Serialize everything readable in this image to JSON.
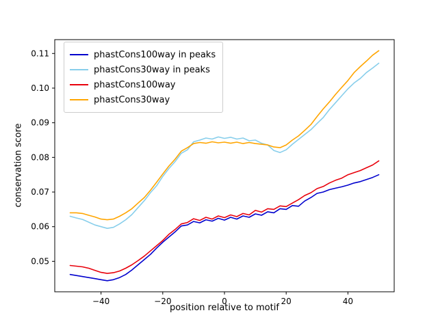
{
  "figure": {
    "background": "#ffffff"
  },
  "chart_data": {
    "type": "line",
    "title": "",
    "xlabel": "position relative to motif",
    "ylabel": "conservation score",
    "xlim": [
      -55,
      55
    ],
    "ylim": [
      0.0412,
      0.114
    ],
    "grid": false,
    "legend_position": "upper left",
    "x_ticks": [
      {
        "value": -40,
        "label": "−40"
      },
      {
        "value": -20,
        "label": "−20"
      },
      {
        "value": 0,
        "label": "0"
      },
      {
        "value": 20,
        "label": "20"
      },
      {
        "value": 40,
        "label": "40"
      }
    ],
    "y_ticks": [
      {
        "value": 0.05,
        "label": "0.05"
      },
      {
        "value": 0.06,
        "label": "0.06"
      },
      {
        "value": 0.07,
        "label": "0.07"
      },
      {
        "value": 0.08,
        "label": "0.08"
      },
      {
        "value": 0.09,
        "label": "0.09"
      },
      {
        "value": 0.1,
        "label": "0.10"
      },
      {
        "value": 0.11,
        "label": "0.11"
      }
    ],
    "x": [
      -50,
      -48,
      -46,
      -44,
      -42,
      -40,
      -38,
      -36,
      -34,
      -32,
      -30,
      -28,
      -26,
      -24,
      -22,
      -20,
      -18,
      -16,
      -14,
      -12,
      -10,
      -8,
      -6,
      -4,
      -2,
      0,
      2,
      4,
      6,
      8,
      10,
      12,
      14,
      16,
      18,
      20,
      22,
      24,
      26,
      28,
      30,
      32,
      34,
      36,
      38,
      40,
      42,
      44,
      46,
      48,
      50
    ],
    "series": [
      {
        "name": "phastCons100way in peaks",
        "color": "#0000cd",
        "values": [
          0.0462,
          0.0459,
          0.0456,
          0.0453,
          0.045,
          0.0447,
          0.0444,
          0.0447,
          0.0453,
          0.0462,
          0.0475,
          0.049,
          0.0505,
          0.052,
          0.0538,
          0.0555,
          0.057,
          0.0585,
          0.0602,
          0.0605,
          0.0615,
          0.0611,
          0.062,
          0.0616,
          0.0624,
          0.0619,
          0.0627,
          0.0622,
          0.0631,
          0.0627,
          0.0637,
          0.0633,
          0.0643,
          0.064,
          0.0652,
          0.065,
          0.0661,
          0.0659,
          0.0674,
          0.0684,
          0.0696,
          0.07,
          0.0707,
          0.0711,
          0.0715,
          0.072,
          0.0726,
          0.073,
          0.0736,
          0.0742,
          0.075
        ]
      },
      {
        "name": "phastCons30way in peaks",
        "color": "#87ceeb",
        "values": [
          0.063,
          0.0625,
          0.0621,
          0.0613,
          0.0605,
          0.06,
          0.0595,
          0.0598,
          0.0608,
          0.062,
          0.0635,
          0.0655,
          0.0675,
          0.0698,
          0.0718,
          0.0745,
          0.0768,
          0.0788,
          0.0812,
          0.0822,
          0.0845,
          0.085,
          0.0856,
          0.0853,
          0.0859,
          0.0855,
          0.0858,
          0.0853,
          0.0856,
          0.0848,
          0.085,
          0.0841,
          0.0836,
          0.082,
          0.0814,
          0.0822,
          0.0838,
          0.0852,
          0.0866,
          0.088,
          0.0898,
          0.0915,
          0.0938,
          0.0958,
          0.0978,
          0.0998,
          0.1015,
          0.1028,
          0.1045,
          0.1058,
          0.1072
        ]
      },
      {
        "name": "phastCons100way",
        "color": "#e8000b",
        "values": [
          0.0488,
          0.0486,
          0.0484,
          0.048,
          0.0474,
          0.0468,
          0.0465,
          0.0467,
          0.0472,
          0.048,
          0.049,
          0.0502,
          0.0515,
          0.053,
          0.0545,
          0.056,
          0.0578,
          0.0592,
          0.0608,
          0.0612,
          0.0623,
          0.0618,
          0.0627,
          0.0622,
          0.0631,
          0.0626,
          0.0634,
          0.0629,
          0.0638,
          0.0634,
          0.0647,
          0.0642,
          0.0652,
          0.065,
          0.066,
          0.0658,
          0.0668,
          0.0678,
          0.069,
          0.0698,
          0.071,
          0.0716,
          0.0726,
          0.0734,
          0.074,
          0.075,
          0.0756,
          0.0762,
          0.077,
          0.0778,
          0.079
        ]
      },
      {
        "name": "phastCons30way",
        "color": "#ffa500",
        "values": [
          0.064,
          0.064,
          0.0638,
          0.0633,
          0.0628,
          0.0622,
          0.062,
          0.0622,
          0.063,
          0.064,
          0.0652,
          0.0668,
          0.0684,
          0.0705,
          0.0728,
          0.0752,
          0.0775,
          0.0795,
          0.0818,
          0.0828,
          0.084,
          0.0843,
          0.0841,
          0.0845,
          0.0842,
          0.0844,
          0.0841,
          0.0844,
          0.084,
          0.0843,
          0.084,
          0.0838,
          0.0836,
          0.083,
          0.0828,
          0.0836,
          0.085,
          0.0862,
          0.0878,
          0.0895,
          0.0918,
          0.094,
          0.096,
          0.0982,
          0.1002,
          0.1022,
          0.1045,
          0.1062,
          0.1078,
          0.1095,
          0.1108
        ]
      }
    ]
  }
}
